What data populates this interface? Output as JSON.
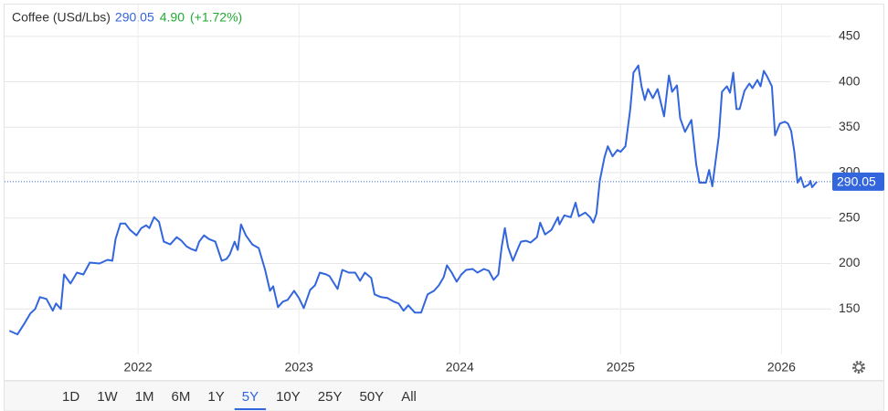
{
  "chart_data": {
    "type": "line",
    "title": "Coffee (USd/Lbs)",
    "last_price": 290.05,
    "change": "4.90",
    "change_pct": "(+1.72%)",
    "series": [
      {
        "name": "Coffee",
        "color": "#3366dd",
        "x": [
          2021.2,
          2021.25,
          2021.29,
          2021.33,
          2021.36,
          2021.39,
          2021.43,
          2021.47,
          2021.49,
          2021.52,
          2021.54,
          2021.58,
          2021.62,
          2021.66,
          2021.7,
          2021.76,
          2021.81,
          2021.84,
          2021.86,
          2021.89,
          2021.92,
          2021.95,
          2021.99,
          2022.02,
          2022.05,
          2022.07,
          2022.1,
          2022.13,
          2022.16,
          2022.2,
          2022.24,
          2022.27,
          2022.3,
          2022.33,
          2022.36,
          2022.38,
          2022.41,
          2022.44,
          2022.48,
          2022.52,
          2022.55,
          2022.57,
          2022.6,
          2022.62,
          2022.64,
          2022.67,
          2022.71,
          2022.75,
          2022.79,
          2022.82,
          2022.84,
          2022.87,
          2022.9,
          2022.93,
          2022.97,
          2023.0,
          2023.03,
          2023.07,
          2023.1,
          2023.13,
          2023.17,
          2023.19,
          2023.24,
          2023.27,
          2023.31,
          2023.35,
          2023.38,
          2023.41,
          2023.45,
          2023.47,
          2023.51,
          2023.55,
          2023.59,
          2023.62,
          2023.65,
          2023.68,
          2023.72,
          2023.76,
          2023.8,
          2023.84,
          2023.87,
          2023.9,
          2023.92,
          2023.95,
          2023.98,
          2024.01,
          2024.04,
          2024.08,
          2024.11,
          2024.15,
          2024.18,
          2024.21,
          2024.24,
          2024.26,
          2024.28,
          2024.3,
          2024.33,
          2024.36,
          2024.38,
          2024.41,
          2024.44,
          2024.48,
          2024.5,
          2024.53,
          2024.57,
          2024.61,
          2024.62,
          2024.65,
          2024.69,
          2024.72,
          2024.74,
          2024.78,
          2024.81,
          2024.83,
          2024.85,
          2024.87,
          2024.9,
          2024.92,
          2024.95,
          2024.98,
          2025.0,
          2025.03,
          2025.06,
          2025.08,
          2025.11,
          2025.13,
          2025.15,
          2025.17,
          2025.2,
          2025.23,
          2025.27,
          2025.3,
          2025.32,
          2025.35,
          2025.37,
          2025.4,
          2025.44,
          2025.47,
          2025.49,
          2025.53,
          2025.55,
          2025.57,
          2025.61,
          2025.63,
          2025.66,
          2025.68,
          2025.7,
          2025.72,
          2025.74,
          2025.77,
          2025.8,
          2025.82,
          2025.85,
          2025.87,
          2025.89,
          2025.91,
          2025.94,
          2025.96,
          2025.99,
          2026.02,
          2026.04,
          2026.06,
          2026.08,
          2026.1,
          2026.12,
          2026.14,
          2026.17,
          2026.18,
          2026.19,
          2026.22
        ],
        "values": [
          126,
          122,
          133,
          145,
          150,
          163,
          161,
          148,
          156,
          150,
          188,
          178,
          190,
          188,
          201,
          200,
          204,
          203,
          227,
          244,
          244,
          237,
          231,
          239,
          242,
          239,
          251,
          246,
          224,
          221,
          229,
          225,
          219,
          216,
          214,
          224,
          231,
          227,
          224,
          203,
          205,
          210,
          224,
          215,
          243,
          231,
          221,
          217,
          193,
          170,
          175,
          152,
          158,
          160,
          170,
          162,
          151,
          171,
          176,
          190,
          188,
          186,
          172,
          193,
          190,
          190,
          181,
          190,
          184,
          166,
          163,
          162,
          158,
          156,
          148,
          154,
          146,
          146,
          166,
          170,
          176,
          185,
          198,
          190,
          180,
          188,
          193,
          194,
          190,
          194,
          192,
          182,
          188,
          218,
          239,
          218,
          203,
          216,
          224,
          225,
          223,
          229,
          245,
          232,
          237,
          251,
          243,
          253,
          251,
          267,
          252,
          256,
          251,
          245,
          255,
          291,
          317,
          329,
          318,
          325,
          323,
          329,
          370,
          410,
          418,
          395,
          380,
          392,
          382,
          392,
          362,
          407,
          389,
          396,
          360,
          345,
          358,
          309,
          289,
          289,
          303,
          285,
          340,
          389,
          395,
          388,
          410,
          370,
          370,
          390,
          398,
          393,
          402,
          395,
          412,
          406,
          395,
          341,
          354,
          356,
          354,
          346,
          323,
          289,
          295,
          284,
          287,
          291,
          284,
          290.05
        ]
      }
    ],
    "xlim": [
      2021.17,
      2026.31
    ],
    "ylim": [
      100,
      485
    ],
    "xticks": [
      2022,
      2023,
      2024,
      2025,
      2026
    ],
    "yticks": [
      150,
      200,
      250,
      300,
      350,
      400,
      450
    ],
    "grid": true,
    "ranges": [
      "1D",
      "1W",
      "1M",
      "6M",
      "1Y",
      "5Y",
      "10Y",
      "25Y",
      "50Y",
      "All"
    ],
    "selected_range": "5Y"
  }
}
